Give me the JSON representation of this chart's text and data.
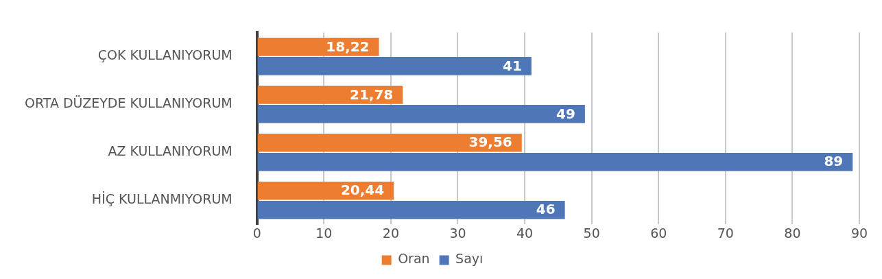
{
  "chart_data": {
    "type": "bar",
    "orientation": "horizontal",
    "categories": [
      "ÇOK KULLANIYORUM",
      "ORTA DÜZEYDE KULLANIYORUM",
      "AZ KULLANIYORUM",
      "HİÇ KULLANMIYORUM"
    ],
    "series": [
      {
        "name": "Oran",
        "color": "#ed7d31",
        "values": [
          18.22,
          21.78,
          39.56,
          20.44
        ],
        "value_labels": [
          "18,22",
          "21,78",
          "39,56",
          "20,44"
        ]
      },
      {
        "name": "Sayı",
        "color": "#4f77b8",
        "values": [
          41,
          49,
          89,
          46
        ],
        "value_labels": [
          "41",
          "49",
          "89",
          "46"
        ]
      }
    ],
    "xlim": [
      0,
      90
    ],
    "xticks": [
      0,
      10,
      20,
      30,
      40,
      50,
      60,
      70,
      80,
      90
    ],
    "grid": "x",
    "legend": "bottom"
  }
}
